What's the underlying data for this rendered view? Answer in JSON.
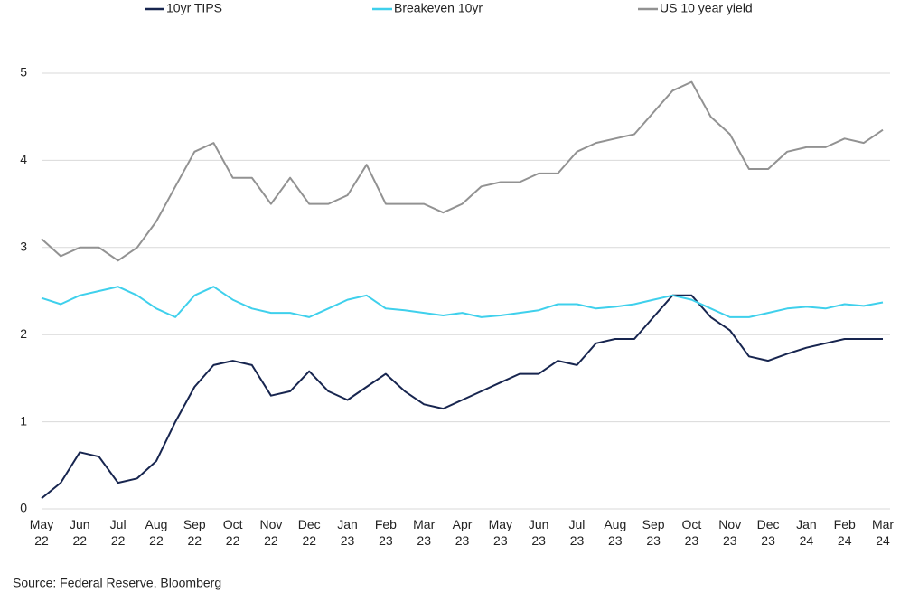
{
  "chart_data": {
    "type": "line",
    "categories": [
      "May 22",
      null,
      "Jun 22",
      null,
      "Jul 22",
      null,
      "Aug 22",
      null,
      "Sep 22",
      null,
      "Oct 22",
      null,
      "Nov 22",
      null,
      "Dec 22",
      null,
      "Jan 23",
      null,
      "Feb 23",
      null,
      "Mar 23",
      null,
      "Apr 23",
      null,
      "May 23",
      null,
      "Jun 23",
      null,
      "Jul 23",
      null,
      "Aug 23",
      null,
      "Sep 23",
      null,
      "Oct 23",
      null,
      "Nov 23",
      null,
      "Dec 23",
      null,
      "Jan 24",
      null,
      "Feb 24",
      null,
      "Mar 24"
    ],
    "series": [
      {
        "name": "10yr TIPS",
        "color": "#17254f",
        "values": [
          0.12,
          0.3,
          0.65,
          0.6,
          0.3,
          0.35,
          0.55,
          1.0,
          1.4,
          1.65,
          1.7,
          1.65,
          1.3,
          1.35,
          1.58,
          1.35,
          1.25,
          1.4,
          1.55,
          1.35,
          1.2,
          1.15,
          1.25,
          1.35,
          1.45,
          1.55,
          1.55,
          1.7,
          1.65,
          1.9,
          1.95,
          1.95,
          2.2,
          2.45,
          2.45,
          2.2,
          2.05,
          1.75,
          1.7,
          1.78,
          1.85,
          1.9,
          1.95,
          1.95,
          1.95
        ]
      },
      {
        "name": "Breakeven 10yr",
        "color": "#3fd0ec",
        "values": [
          2.42,
          2.35,
          2.45,
          2.5,
          2.55,
          2.45,
          2.3,
          2.2,
          2.45,
          2.55,
          2.4,
          2.3,
          2.25,
          2.25,
          2.2,
          2.3,
          2.4,
          2.45,
          2.3,
          2.28,
          2.25,
          2.22,
          2.25,
          2.2,
          2.22,
          2.25,
          2.28,
          2.35,
          2.35,
          2.3,
          2.32,
          2.35,
          2.4,
          2.45,
          2.4,
          2.3,
          2.2,
          2.2,
          2.25,
          2.3,
          2.32,
          2.3,
          2.35,
          2.33,
          2.37
        ]
      },
      {
        "name": "US 10 year yield",
        "color": "#929292",
        "values": [
          3.1,
          2.9,
          3.0,
          3.0,
          2.85,
          3.0,
          3.3,
          3.7,
          4.1,
          4.2,
          3.8,
          3.8,
          3.5,
          3.8,
          3.5,
          3.5,
          3.6,
          3.95,
          3.5,
          3.5,
          3.5,
          3.4,
          3.5,
          3.7,
          3.75,
          3.75,
          3.85,
          3.85,
          4.1,
          4.2,
          4.25,
          4.3,
          4.55,
          4.8,
          4.9,
          4.5,
          4.3,
          3.9,
          3.9,
          4.1,
          4.15,
          4.15,
          4.25,
          4.2,
          4.35
        ]
      }
    ],
    "ylim": [
      0,
      5
    ],
    "yticks": [
      0,
      1,
      2,
      3,
      4,
      5
    ],
    "grid": true,
    "legend": "top",
    "source": "Source: Federal Reserve, Bloomberg"
  }
}
